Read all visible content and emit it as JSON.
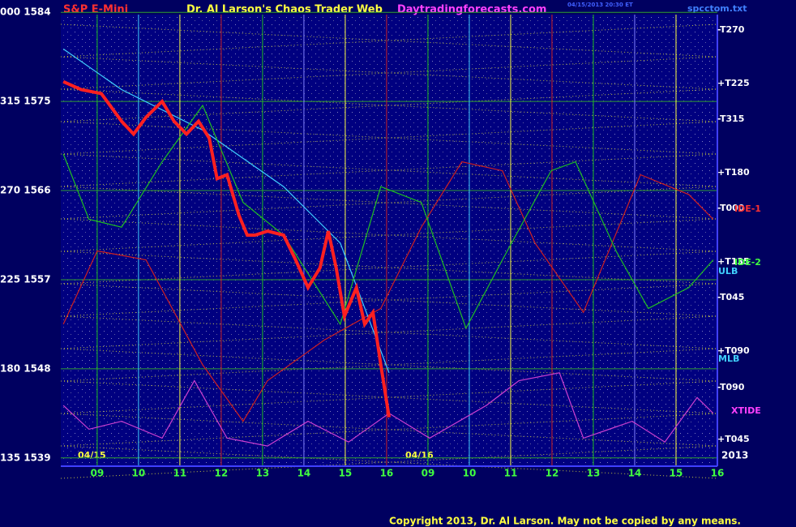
{
  "chart_data": {
    "type": "line",
    "title": "S&P E-Mini",
    "subtitle": "Dr. Al Larson's Chaos Trader Web",
    "site": "Daytradingforecasts.com",
    "file": "spcctom.txt",
    "stamp": "04/15/2013 20:30 ET",
    "copyright": "Copyright 2013, Dr. Al Larson. May not be copied by any means.",
    "year": "2013",
    "date_labels": [
      "04/15",
      "04/16"
    ],
    "xlim": [
      8.12,
      24
    ],
    "xticks": [
      {
        "value": 9,
        "label": "09"
      },
      10,
      11,
      12,
      13,
      14,
      15,
      16,
      {
        "value": 17,
        "label": "09"
      },
      {
        "value": 18,
        "label": "10"
      },
      {
        "value": 19,
        "label": "11"
      },
      {
        "value": 20,
        "label": "12"
      },
      {
        "value": 21,
        "label": "13"
      },
      {
        "value": 22,
        "label": "14"
      },
      {
        "value": 23,
        "label": "15"
      },
      {
        "value": 24,
        "label": "16"
      }
    ],
    "ylim": [
      1538,
      1585
    ],
    "yticks": [
      {
        "value": 1584,
        "label": "000 1584"
      },
      {
        "value": 1575,
        "label": "315 1575"
      },
      {
        "value": 1566,
        "label": "270 1566"
      },
      {
        "value": 1557,
        "label": "225 1557"
      },
      {
        "value": 1548,
        "label": "180 1548"
      },
      {
        "value": 1539,
        "label": "135 1539"
      }
    ],
    "grid": true,
    "right_labels": [
      "-T270",
      "+T225",
      "-T315",
      "+T180",
      "-T000",
      "+T135",
      "-T045",
      "+T090",
      "-T090",
      "+T045"
    ],
    "side_labels": [
      "ULB",
      "MLB",
      "XTIDE",
      "IDE-1",
      "IDE-2"
    ],
    "series": [
      {
        "name": "Price",
        "color": "#ff2020",
        "x": [
          8.18,
          8.61,
          9.1,
          9.59,
          9.88,
          10.18,
          10.57,
          10.86,
          11.16,
          11.45,
          11.71,
          11.9,
          12.14,
          12.43,
          12.63,
          12.82,
          13.12,
          13.51,
          13.8,
          14.1,
          14.39,
          14.59,
          14.78,
          14.98,
          15.27,
          15.47,
          15.67,
          15.86,
          16.06
        ],
        "values": [
          1577,
          1576.2,
          1575.8,
          1573,
          1571.7,
          1573.4,
          1575,
          1573,
          1571.7,
          1573,
          1571.3,
          1567.2,
          1567.6,
          1563.5,
          1561.5,
          1561.5,
          1561.9,
          1561.5,
          1559,
          1556.2,
          1558.2,
          1561.9,
          1558.2,
          1553.3,
          1556.2,
          1552.5,
          1553.7,
          1548.4,
          1543.1
        ]
      },
      {
        "name": "Green",
        "color": "#20c020",
        "x": [
          8.18,
          8.8,
          9.59,
          10.57,
          11.55,
          12.53,
          13.51,
          14.88,
          15.86,
          16.84,
          17.92,
          18.8,
          19.98,
          20.57,
          21.55,
          22.33,
          23.31,
          23.9
        ],
        "values": [
          1569.7,
          1563.1,
          1562.3,
          1568.9,
          1574.6,
          1564.8,
          1561.5,
          1552.5,
          1566.4,
          1564.8,
          1552.1,
          1559,
          1568,
          1568.9,
          1559.9,
          1554.1,
          1556.2,
          1559
        ]
      },
      {
        "name": "Cyan",
        "color": "#40d0ff",
        "x": [
          8.18,
          9.59,
          11.55,
          13.51,
          14.88,
          16.06
        ],
        "values": [
          1580.3,
          1576.2,
          1572.1,
          1566.4,
          1560.7,
          1547.6
        ]
      },
      {
        "name": "Forecast",
        "color": "#d02020",
        "x": [
          8.18,
          9,
          10.18,
          11.55,
          12.53,
          13.12,
          14.49,
          15.86,
          16.84,
          17.82,
          18.8,
          19.59,
          20.76,
          22.14,
          23.31,
          23.9
        ],
        "values": [
          1552.5,
          1559.9,
          1559,
          1548.4,
          1542.7,
          1546.8,
          1550.9,
          1554.1,
          1562.3,
          1568.9,
          1568,
          1560.7,
          1553.7,
          1567.6,
          1565.6,
          1563.1
        ]
      },
      {
        "name": "Tide",
        "color": "#d040d0",
        "x": [
          8.18,
          8.8,
          9.59,
          10.57,
          11.35,
          12.14,
          13.12,
          14.1,
          15.08,
          16.06,
          17.04,
          18.41,
          19.2,
          20.18,
          20.76,
          21.94,
          22.73,
          23.51,
          23.9
        ],
        "values": [
          1544.3,
          1541.9,
          1542.7,
          1541,
          1546.8,
          1541,
          1540.2,
          1542.7,
          1540.6,
          1543.5,
          1541,
          1544.3,
          1546.8,
          1547.6,
          1541,
          1542.7,
          1540.6,
          1545.1,
          1543.5
        ]
      }
    ]
  }
}
